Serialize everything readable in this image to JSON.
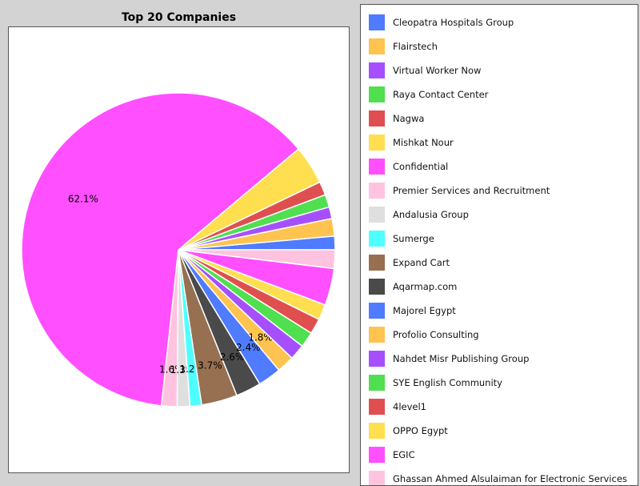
{
  "chart_data": {
    "type": "pie",
    "title": "Top 20 Companies",
    "legend_position": "right",
    "slices": [
      {
        "label": "Cleopatra Hospitals Group",
        "value": 1.4,
        "color": "#4f7bff"
      },
      {
        "label": "Flairstech",
        "value": 1.8,
        "color": "#ffc34f"
      },
      {
        "label": "Virtual Worker Now",
        "value": 1.2,
        "color": "#a64fff"
      },
      {
        "label": "Raya Contact Center",
        "value": 1.3,
        "color": "#4fdf4f"
      },
      {
        "label": "Nagwa",
        "value": 1.4,
        "color": "#df4f4f"
      },
      {
        "label": "Mishkat Nour",
        "value": 4.0,
        "color": "#ffdf4f"
      },
      {
        "label": "EGIC",
        "value": 62.1,
        "color": "#ff4fff",
        "pct_label": "62.1%"
      },
      {
        "label": "Premier Services and Recruitment",
        "value": 1.6,
        "color": "#ffc3df",
        "pct_label": "1.6%"
      },
      {
        "label": "Andalusia Group",
        "value": 1.3,
        "color": "#dfdfdf",
        "pct_label": "1.3%"
      },
      {
        "label": "Sumerge",
        "value": 1.2,
        "color": "#4fffff",
        "pct_label": "1.2%"
      },
      {
        "label": "Expand Cart",
        "value": 3.7,
        "color": "#967050",
        "pct_label": "3.7%"
      },
      {
        "label": "Aqarmap.com",
        "value": 2.6,
        "color": "#4a4a4a",
        "pct_label": "2.6%"
      },
      {
        "label": "Majorel Egypt",
        "value": 2.4,
        "color": "#4f7bff",
        "pct_label": "2.4%"
      },
      {
        "label": "Profolio Consulting",
        "value": 1.8,
        "color": "#ffc34f",
        "pct_label": "1.8%"
      },
      {
        "label": "Nahdet Misr Publishing Group",
        "value": 1.6,
        "color": "#a64fff"
      },
      {
        "label": "SYE English Community",
        "value": 1.6,
        "color": "#4fdf4f"
      },
      {
        "label": "4level1",
        "value": 1.6,
        "color": "#df4f4f"
      },
      {
        "label": "OPPO Egypt",
        "value": 1.6,
        "color": "#ffdf4f"
      },
      {
        "label": "Confidential",
        "value": 3.8,
        "color": "#ff4fff"
      },
      {
        "label": "Ghassan Ahmed Alsulaiman for Electronic Services",
        "value": 1.9,
        "color": "#ffc3df"
      }
    ],
    "legend": [
      {
        "label": "Cleopatra Hospitals Group",
        "color": "#4f7bff"
      },
      {
        "label": "Flairstech",
        "color": "#ffc34f"
      },
      {
        "label": "Virtual Worker Now",
        "color": "#a64fff"
      },
      {
        "label": "Raya Contact Center",
        "color": "#4fdf4f"
      },
      {
        "label": "Nagwa",
        "color": "#df4f4f"
      },
      {
        "label": "Mishkat Nour",
        "color": "#ffdf4f"
      },
      {
        "label": "Confidential",
        "color": "#ff4fff"
      },
      {
        "label": "Premier Services and Recruitment",
        "color": "#ffc3df"
      },
      {
        "label": "Andalusia Group",
        "color": "#dfdfdf"
      },
      {
        "label": "Sumerge",
        "color": "#4fffff"
      },
      {
        "label": "Expand Cart",
        "color": "#967050"
      },
      {
        "label": "Aqarmap.com",
        "color": "#4a4a4a"
      },
      {
        "label": "Majorel Egypt",
        "color": "#4f7bff"
      },
      {
        "label": "Profolio Consulting",
        "color": "#ffc34f"
      },
      {
        "label": "Nahdet Misr Publishing Group",
        "color": "#a64fff"
      },
      {
        "label": "SYE English Community",
        "color": "#4fdf4f"
      },
      {
        "label": "4level1",
        "color": "#df4f4f"
      },
      {
        "label": "OPPO Egypt",
        "color": "#ffdf4f"
      },
      {
        "label": "EGIC",
        "color": "#ff4fff"
      },
      {
        "label": "Ghassan Ahmed Alsulaiman for Electronic Services",
        "color": "#ffc3df"
      }
    ]
  }
}
